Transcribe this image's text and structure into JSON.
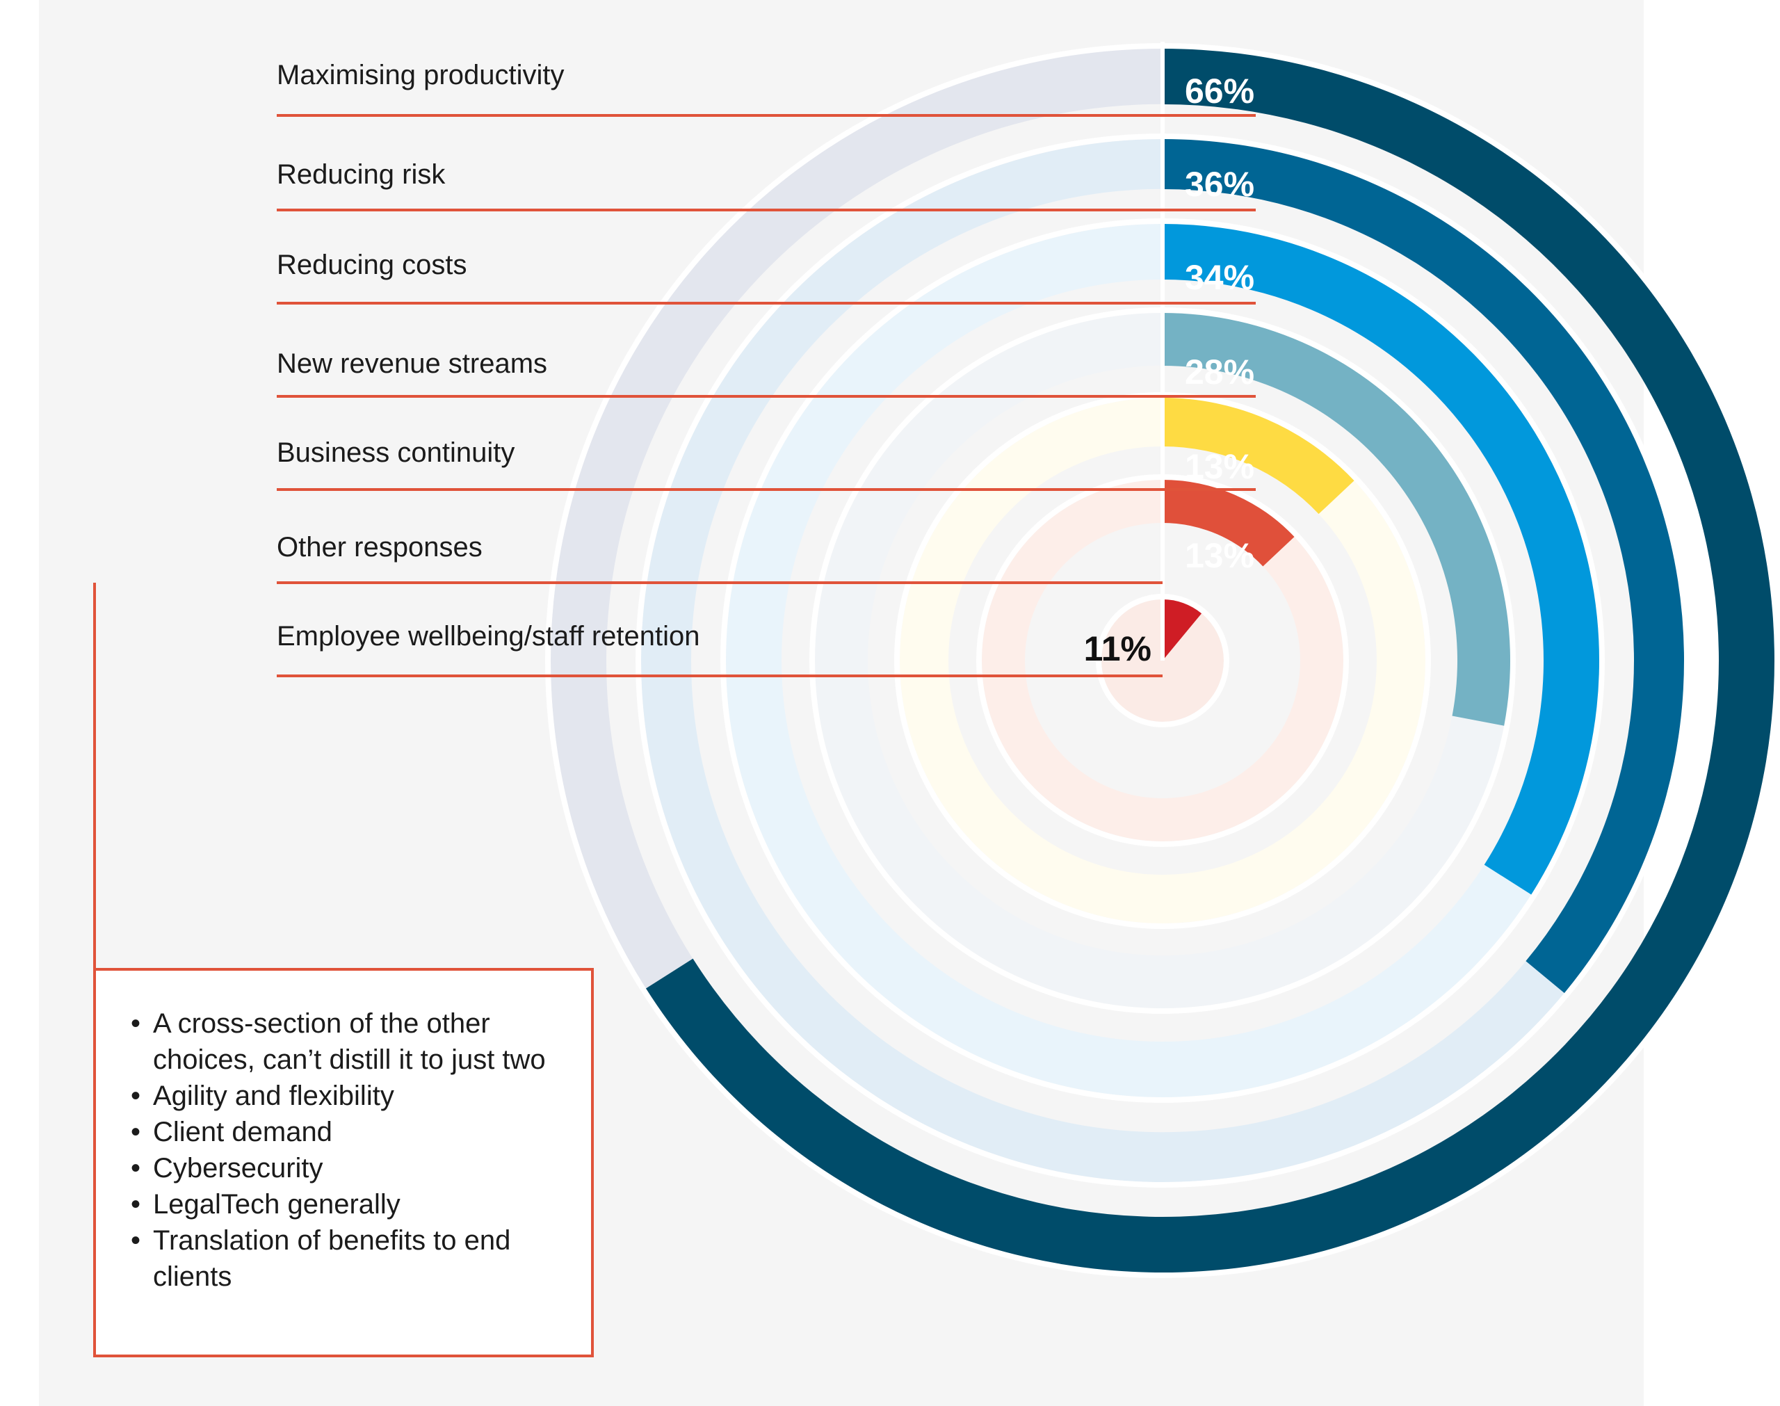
{
  "chart_data": {
    "type": "radial-bar",
    "title": "",
    "unit": "%",
    "series": [
      {
        "label": "Maximising productivity",
        "value": 66,
        "value_label": "66%",
        "color": "#004c6a",
        "track_color": "#e3e6ee",
        "label_color": "#ffffff",
        "value_line": true
      },
      {
        "label": "Reducing risk",
        "value": 36,
        "value_label": "36%",
        "color": "#006594",
        "track_color": "#e1edf6",
        "label_color": "#ffffff",
        "value_line": true
      },
      {
        "label": "Reducing costs",
        "value": 34,
        "value_label": "34%",
        "color": "#0198dc",
        "track_color": "#e9f4fb",
        "label_color": "#ffffff",
        "value_line": true
      },
      {
        "label": "New revenue streams",
        "value": 28,
        "value_label": "28%",
        "color": "#74b2c4",
        "track_color": "#f1f4f7",
        "label_color": "#ffffff",
        "value_line": true
      },
      {
        "label": "Business continuity",
        "value": 13,
        "value_label": "13%",
        "color": "#fedb43",
        "track_color": "#fffcef",
        "label_color": "#ffffff",
        "value_line": true
      },
      {
        "label": "Other responses",
        "value": 13,
        "value_label": "13%",
        "color": "#e0503a",
        "track_color": "#fdeee9",
        "label_color": "#ffffff",
        "value_line": false
      },
      {
        "label": "Employee wellbeing/staff retention",
        "value": 11,
        "value_label": "11%",
        "color": "#cf1d25",
        "track_color": "#fbebe6",
        "label_color": "#111111",
        "value_line": false
      }
    ]
  },
  "other_responses": [
    "A cross-section of the other choices, can’t distill it to just two",
    "Agility and flexibility",
    "Client demand",
    "Cybersecurity",
    "LegalTech generally",
    "Translation of benefits to end clients"
  ],
  "colors": {
    "leader_line": "#e0533a",
    "background": "#f5f5f5",
    "label_text": "#1b1b1b"
  }
}
